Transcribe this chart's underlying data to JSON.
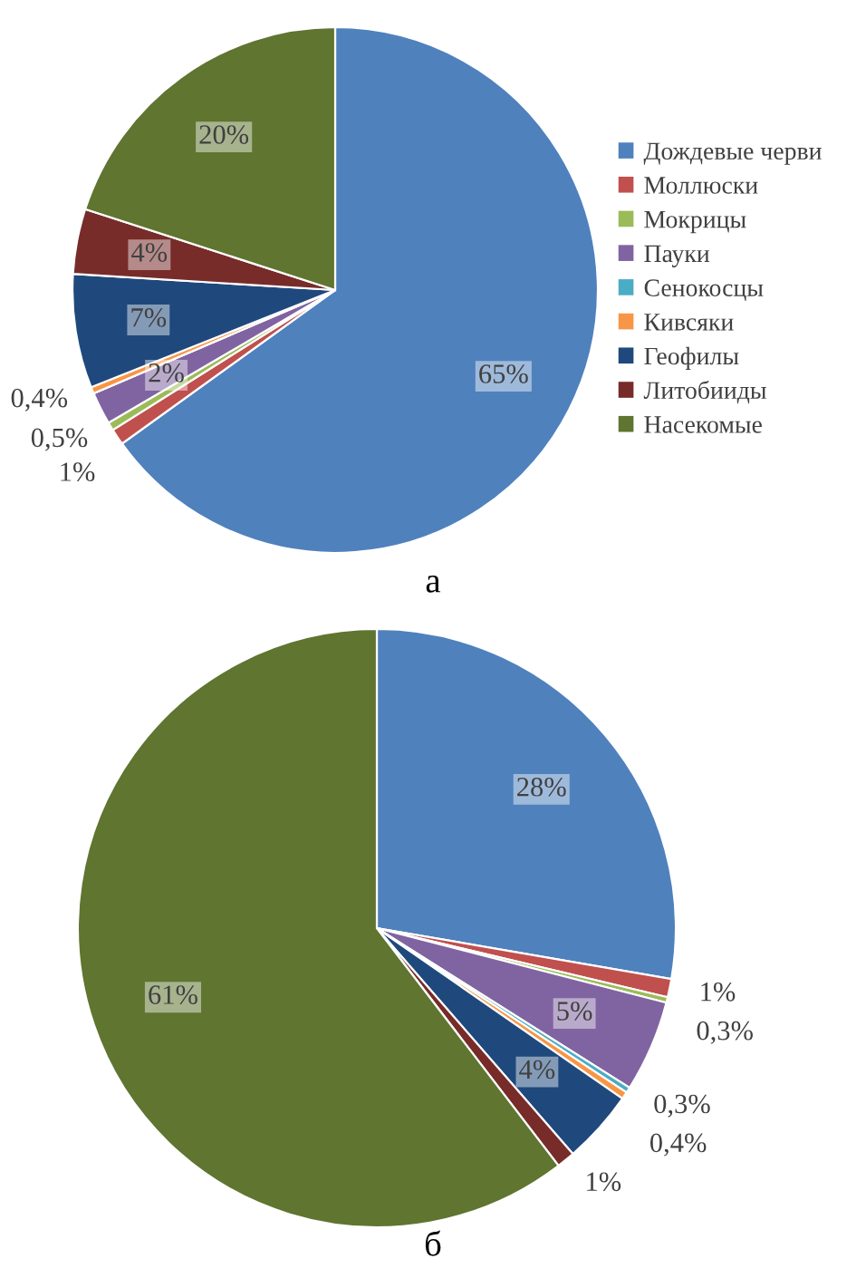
{
  "chart_data": [
    {
      "type": "pie",
      "title": "а",
      "legend": "right",
      "categories": [
        "Дождевые черви",
        "Моллюски",
        "Мокрицы",
        "Пауки",
        "Сенокосцы",
        "Кивсяки",
        "Геофилы",
        "Литобииды",
        "Насекомые"
      ],
      "values": [
        65,
        1,
        0.5,
        2,
        null,
        0.4,
        7,
        4,
        20
      ],
      "value_labels": [
        "65%",
        "1%",
        "0,5%",
        "2%",
        null,
        "0,4%",
        "7%",
        "4%",
        "20%"
      ],
      "colors": [
        "#4f81bd",
        "#c0504d",
        "#9bbb59",
        "#8064a2",
        "#4bacc6",
        "#f79646",
        "#1f497d",
        "#772c2a",
        "#5f7530"
      ]
    },
    {
      "type": "pie",
      "title": "б",
      "categories": [
        null,
        null,
        null,
        null,
        null,
        null,
        null,
        null,
        null
      ],
      "values": [
        28,
        1,
        0.3,
        5,
        0.3,
        0.4,
        4,
        1,
        61
      ],
      "value_labels": [
        "28%",
        "1%",
        "0,3%",
        "5%",
        "0,3%",
        "0,4%",
        "4%",
        "1%",
        "61%"
      ],
      "colors": [
        "#4f81bd",
        "#c0504d",
        "#9bbb59",
        "#8064a2",
        "#4bacc6",
        "#f79646",
        "#1f497d",
        "#772c2a",
        "#5f7530"
      ]
    }
  ]
}
